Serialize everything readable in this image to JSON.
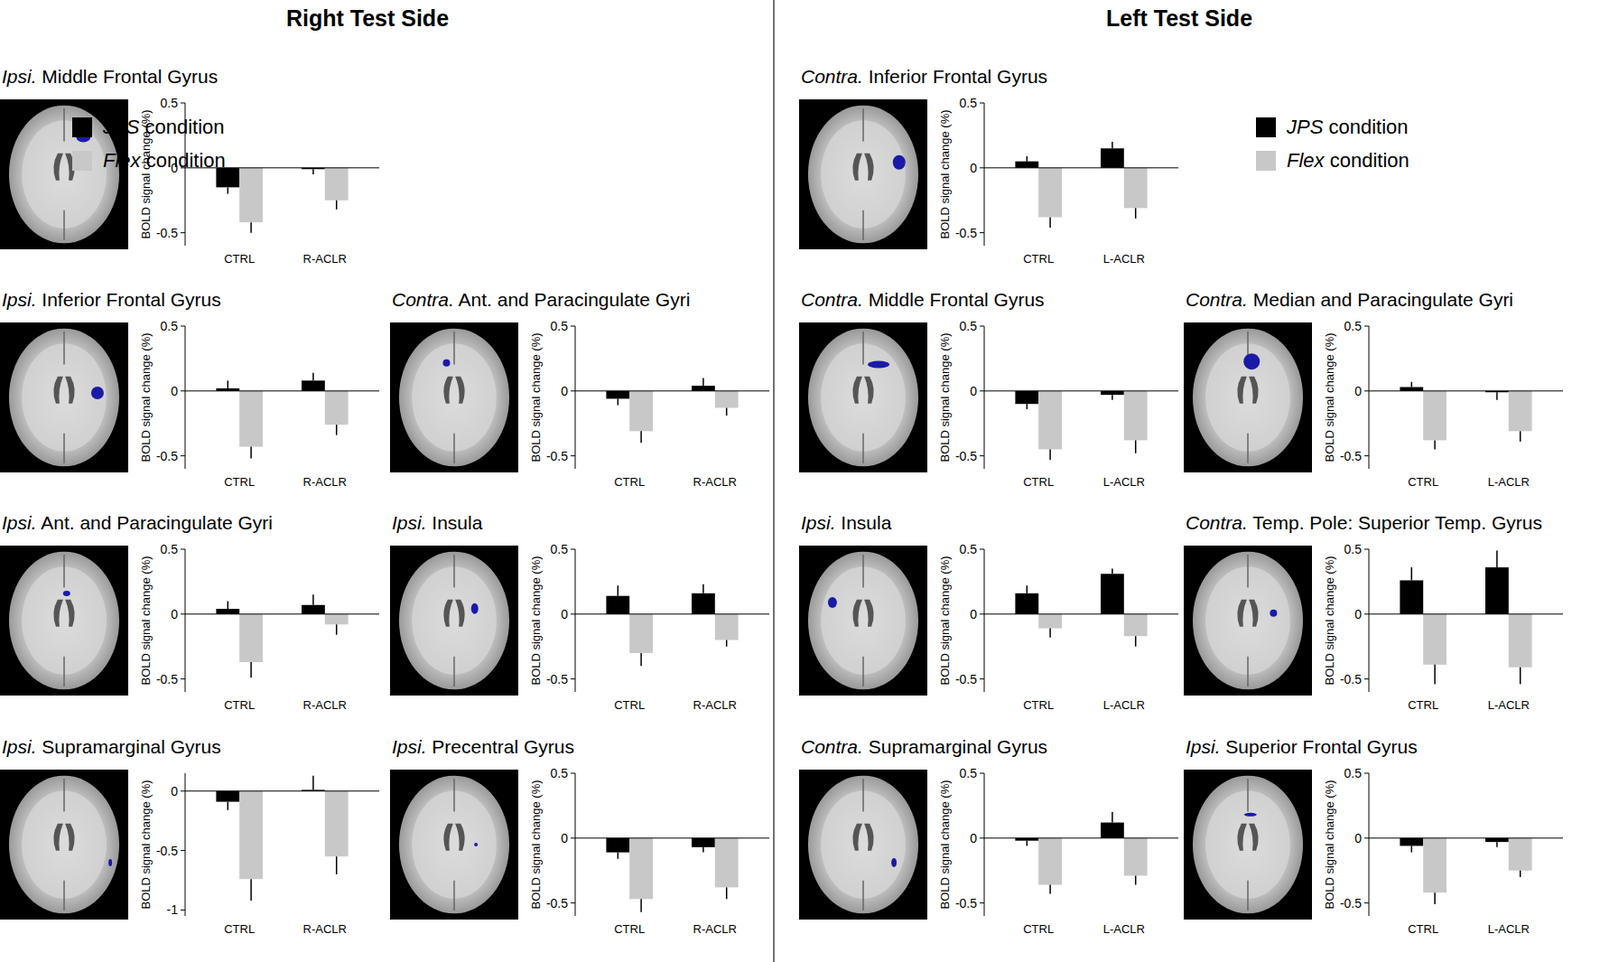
{
  "sections": [
    "Right Test Side",
    "Left Test Side"
  ],
  "chart_data": [
    {
      "type": "bar",
      "title": "Ipsi. Middle Frontal Gyrus",
      "y_label": "BOLD signal change (%)",
      "categories": [
        "CTRL",
        "R-ACLR"
      ],
      "ylim": [
        -0.6,
        0.5
      ],
      "yticks": [
        0.5,
        0,
        -0.5
      ],
      "series": [
        {
          "name": "JPS condition",
          "color": "#000000",
          "values": [
            -0.15,
            -0.01
          ],
          "errors": [
            0.05,
            0.04
          ]
        },
        {
          "name": "Flex condition",
          "color": "#c8c8c8",
          "values": [
            -0.42,
            -0.25
          ],
          "errors": [
            0.08,
            0.07
          ]
        }
      ]
    },
    {
      "type": "bar",
      "title": "Ipsi. Inferior Frontal Gyrus",
      "y_label": "BOLD signal change (%)",
      "categories": [
        "CTRL",
        "R-ACLR"
      ],
      "ylim": [
        -0.6,
        0.5
      ],
      "yticks": [
        0.5,
        0,
        -0.5
      ],
      "series": [
        {
          "name": "JPS condition",
          "color": "#000000",
          "values": [
            0.02,
            0.08
          ],
          "errors": [
            0.06,
            0.06
          ]
        },
        {
          "name": "Flex condition",
          "color": "#c8c8c8",
          "values": [
            -0.43,
            -0.26
          ],
          "errors": [
            0.09,
            0.08
          ]
        }
      ]
    },
    {
      "type": "bar",
      "title": "Contra. Ant. and Paracingulate Gyri",
      "y_label": "BOLD signal change (%)",
      "categories": [
        "CTRL",
        "R-ACLR"
      ],
      "ylim": [
        -0.6,
        0.5
      ],
      "yticks": [
        0.5,
        0,
        -0.5
      ],
      "series": [
        {
          "name": "JPS condition",
          "color": "#000000",
          "values": [
            -0.06,
            0.04
          ],
          "errors": [
            0.05,
            0.06
          ]
        },
        {
          "name": "Flex condition",
          "color": "#c8c8c8",
          "values": [
            -0.31,
            -0.13
          ],
          "errors": [
            0.09,
            0.06
          ]
        }
      ]
    },
    {
      "type": "bar",
      "title": "Ipsi. Ant. and Paracingulate Gyri",
      "y_label": "BOLD signal change (%)",
      "categories": [
        "CTRL",
        "R-ACLR"
      ],
      "ylim": [
        -0.6,
        0.5
      ],
      "yticks": [
        0.5,
        0,
        -0.5
      ],
      "series": [
        {
          "name": "JPS condition",
          "color": "#000000",
          "values": [
            0.04,
            0.07
          ],
          "errors": [
            0.06,
            0.08
          ]
        },
        {
          "name": "Flex condition",
          "color": "#c8c8c8",
          "values": [
            -0.37,
            -0.08
          ],
          "errors": [
            0.12,
            0.08
          ]
        }
      ]
    },
    {
      "type": "bar",
      "title": "Ipsi. Insula",
      "y_label": "BOLD signal change (%)",
      "categories": [
        "CTRL",
        "R-ACLR"
      ],
      "ylim": [
        -0.6,
        0.5
      ],
      "yticks": [
        0.5,
        0,
        -0.5
      ],
      "series": [
        {
          "name": "JPS condition",
          "color": "#000000",
          "values": [
            0.14,
            0.16
          ],
          "errors": [
            0.08,
            0.07
          ]
        },
        {
          "name": "Flex condition",
          "color": "#c8c8c8",
          "values": [
            -0.3,
            -0.2
          ],
          "errors": [
            0.1,
            0.05
          ]
        }
      ]
    },
    {
      "type": "bar",
      "title": "Ipsi. Supramarginal Gyrus",
      "y_label": "BOLD signal change (%)",
      "categories": [
        "CTRL",
        "R-ACLR"
      ],
      "ylim": [
        -1.05,
        0.15
      ],
      "yticks": [
        0,
        -0.5,
        -1
      ],
      "series": [
        {
          "name": "JPS condition",
          "color": "#000000",
          "values": [
            -0.09,
            0.01
          ],
          "errors": [
            0.07,
            0.12
          ]
        },
        {
          "name": "Flex condition",
          "color": "#c8c8c8",
          "values": [
            -0.74,
            -0.55
          ],
          "errors": [
            0.18,
            0.15
          ]
        }
      ]
    },
    {
      "type": "bar",
      "title": "Ipsi. Precentral Gyrus",
      "y_label": "BOLD signal change (%)",
      "categories": [
        "CTRL",
        "R-ACLR"
      ],
      "ylim": [
        -0.6,
        0.5
      ],
      "yticks": [
        0.5,
        0,
        -0.5
      ],
      "series": [
        {
          "name": "JPS condition",
          "color": "#000000",
          "values": [
            -0.11,
            -0.07
          ],
          "errors": [
            0.05,
            0.04
          ]
        },
        {
          "name": "Flex condition",
          "color": "#c8c8c8",
          "values": [
            -0.47,
            -0.38
          ],
          "errors": [
            0.1,
            0.09
          ]
        }
      ]
    },
    {
      "type": "bar",
      "title": "Contra. Inferior Frontal Gyrus",
      "y_label": "BOLD signal change (%)",
      "categories": [
        "CTRL",
        "L-ACLR"
      ],
      "ylim": [
        -0.6,
        0.5
      ],
      "yticks": [
        0.5,
        0,
        -0.5
      ],
      "series": [
        {
          "name": "JPS condition",
          "color": "#000000",
          "values": [
            0.05,
            0.15
          ],
          "errors": [
            0.04,
            0.05
          ]
        },
        {
          "name": "Flex condition",
          "color": "#c8c8c8",
          "values": [
            -0.38,
            -0.31
          ],
          "errors": [
            0.08,
            0.08
          ]
        }
      ]
    },
    {
      "type": "bar",
      "title": "Contra. Middle Frontal Gyrus",
      "y_label": "BOLD signal change (%)",
      "categories": [
        "CTRL",
        "L-ACLR"
      ],
      "ylim": [
        -0.6,
        0.5
      ],
      "yticks": [
        0.5,
        0,
        -0.5
      ],
      "series": [
        {
          "name": "JPS condition",
          "color": "#000000",
          "values": [
            -0.1,
            -0.03
          ],
          "errors": [
            0.04,
            0.04
          ]
        },
        {
          "name": "Flex condition",
          "color": "#c8c8c8",
          "values": [
            -0.45,
            -0.38
          ],
          "errors": [
            0.08,
            0.1
          ]
        }
      ]
    },
    {
      "type": "bar",
      "title": "Contra. Median and Paracingulate Gyri",
      "y_label": "BOLD signal change (%)",
      "categories": [
        "CTRL",
        "L-ACLR"
      ],
      "ylim": [
        -0.6,
        0.5
      ],
      "yticks": [
        0.5,
        0,
        -0.5
      ],
      "series": [
        {
          "name": "JPS condition",
          "color": "#000000",
          "values": [
            0.03,
            -0.01
          ],
          "errors": [
            0.04,
            0.06
          ]
        },
        {
          "name": "Flex condition",
          "color": "#c8c8c8",
          "values": [
            -0.38,
            -0.31
          ],
          "errors": [
            0.07,
            0.08
          ]
        }
      ]
    },
    {
      "type": "bar",
      "title": "Ipsi. Insula",
      "y_label": "BOLD signal change (%)",
      "categories": [
        "CTRL",
        "L-ACLR"
      ],
      "ylim": [
        -0.6,
        0.5
      ],
      "yticks": [
        0.5,
        0,
        -0.5
      ],
      "series": [
        {
          "name": "JPS condition",
          "color": "#000000",
          "values": [
            0.16,
            0.31
          ],
          "errors": [
            0.06,
            0.04
          ]
        },
        {
          "name": "Flex condition",
          "color": "#c8c8c8",
          "values": [
            -0.11,
            -0.17
          ],
          "errors": [
            0.07,
            0.08
          ]
        }
      ]
    },
    {
      "type": "bar",
      "title": "Contra. Temp. Pole: Superior Temp. Gyrus",
      "y_label": "BOLD signal change (%)",
      "categories": [
        "CTRL",
        "L-ACLR"
      ],
      "ylim": [
        -0.6,
        0.5
      ],
      "yticks": [
        0.5,
        0,
        -0.5
      ],
      "series": [
        {
          "name": "JPS condition",
          "color": "#000000",
          "values": [
            0.26,
            0.36
          ],
          "errors": [
            0.1,
            0.13
          ]
        },
        {
          "name": "Flex condition",
          "color": "#c8c8c8",
          "values": [
            -0.39,
            -0.41
          ],
          "errors": [
            0.15,
            0.13
          ]
        }
      ]
    },
    {
      "type": "bar",
      "title": "Contra. Supramarginal Gyrus",
      "y_label": "BOLD signal change (%)",
      "categories": [
        "CTRL",
        "L-ACLR"
      ],
      "ylim": [
        -0.6,
        0.5
      ],
      "yticks": [
        0.5,
        0,
        -0.5
      ],
      "series": [
        {
          "name": "JPS condition",
          "color": "#000000",
          "values": [
            -0.02,
            0.12
          ],
          "errors": [
            0.04,
            0.08
          ]
        },
        {
          "name": "Flex condition",
          "color": "#c8c8c8",
          "values": [
            -0.36,
            -0.29
          ],
          "errors": [
            0.07,
            0.07
          ]
        }
      ]
    },
    {
      "type": "bar",
      "title": "Ipsi. Superior Frontal Gyrus",
      "y_label": "BOLD signal change (%)",
      "categories": [
        "CTRL",
        "L-ACLR"
      ],
      "ylim": [
        -0.6,
        0.5
      ],
      "yticks": [
        0.5,
        0,
        -0.5
      ],
      "series": [
        {
          "name": "JPS condition",
          "color": "#000000",
          "values": [
            -0.06,
            -0.03
          ],
          "errors": [
            0.05,
            0.04
          ]
        },
        {
          "name": "Flex condition",
          "color": "#c8c8c8",
          "values": [
            -0.42,
            -0.25
          ],
          "errors": [
            0.09,
            0.05
          ]
        }
      ]
    }
  ]
}
